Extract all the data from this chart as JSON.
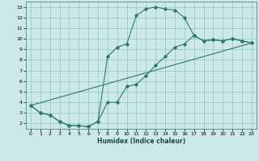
{
  "xlabel": "Humidex (Indice chaleur)",
  "background_color": "#cce8e8",
  "grid_color": "#99cccc",
  "line_color": "#2a7a6a",
  "xlim": [
    -0.5,
    23.5
  ],
  "ylim": [
    1.5,
    13.5
  ],
  "xticks": [
    0,
    1,
    2,
    3,
    4,
    5,
    6,
    7,
    8,
    9,
    10,
    11,
    12,
    13,
    14,
    15,
    16,
    17,
    18,
    19,
    20,
    21,
    22,
    23
  ],
  "yticks": [
    2,
    3,
    4,
    5,
    6,
    7,
    8,
    9,
    10,
    11,
    12,
    13
  ],
  "line1_x": [
    0,
    1,
    2,
    3,
    4,
    5,
    6,
    7,
    8,
    9,
    10,
    11,
    12,
    13,
    14,
    15,
    16,
    17,
    18,
    19,
    20,
    21,
    22,
    23
  ],
  "line1_y": [
    3.7,
    3.0,
    2.8,
    2.2,
    1.8,
    1.8,
    1.7,
    2.2,
    4.0,
    4.0,
    5.5,
    5.7,
    6.5,
    7.5,
    8.3,
    9.2,
    9.5,
    10.3,
    9.8,
    9.9,
    9.8,
    10.0,
    9.8,
    9.6
  ],
  "line2_x": [
    0,
    1,
    2,
    3,
    4,
    5,
    6,
    7,
    8,
    9,
    10,
    11,
    12,
    13,
    14,
    15,
    16,
    17,
    18,
    19,
    20,
    21,
    22,
    23
  ],
  "line2_y": [
    3.7,
    3.0,
    2.8,
    2.2,
    1.8,
    1.8,
    1.7,
    2.2,
    8.3,
    9.2,
    9.5,
    12.2,
    12.8,
    13.0,
    12.8,
    12.7,
    12.0,
    10.3,
    9.8,
    9.9,
    9.8,
    10.0,
    9.8,
    9.6
  ],
  "line3_x": [
    0,
    23
  ],
  "line3_y": [
    3.7,
    9.6
  ]
}
